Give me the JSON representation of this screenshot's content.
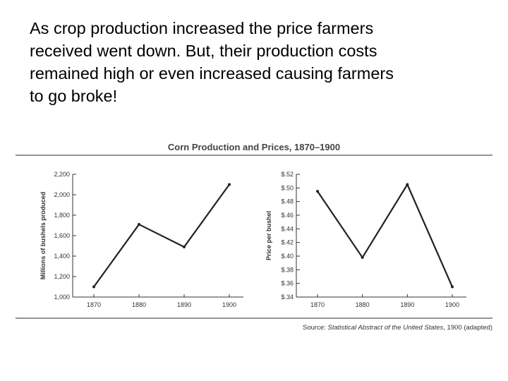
{
  "caption": {
    "lines": [
      "As crop production increased the price farmers",
      "received went down.  But, their production costs",
      "remained high or even increased causing farmers",
      "to go broke!"
    ]
  },
  "figure": {
    "title": "Corn Production and Prices, 1870–1900",
    "source_prefix": "Source: ",
    "source_italic": "Statistical Abstract of the United States",
    "source_suffix": ", 1900 (adapted)"
  },
  "chart_data": [
    {
      "type": "line",
      "title": "",
      "xlabel": "",
      "ylabel": "Millions of bushels produced",
      "x": [
        "1870",
        "1880",
        "1890",
        "1900"
      ],
      "series": [
        {
          "values": [
            1100,
            1710,
            1490,
            2100
          ]
        }
      ],
      "ylim": [
        1000,
        2200
      ],
      "yticks": [
        1000,
        1200,
        1400,
        1600,
        1800,
        2000,
        2200
      ],
      "ytick_labels": [
        "1,000",
        "1,200",
        "1,400",
        "1,600",
        "1,800",
        "2,000",
        "2,200"
      ],
      "grid": false,
      "line_color": "#222222"
    },
    {
      "type": "line",
      "title": "",
      "xlabel": "",
      "ylabel": "Price per bushel",
      "x": [
        "1870",
        "1880",
        "1890",
        "1900"
      ],
      "series": [
        {
          "values": [
            0.495,
            0.398,
            0.505,
            0.355
          ]
        }
      ],
      "ylim": [
        0.34,
        0.52
      ],
      "yticks": [
        0.34,
        0.36,
        0.38,
        0.4,
        0.42,
        0.44,
        0.46,
        0.48,
        0.5,
        0.52
      ],
      "ytick_labels": [
        "$.34",
        "$.36",
        "$.38",
        "$.40",
        "$.42",
        "$.44",
        "$.46",
        "$.48",
        "$.50",
        "$.52"
      ],
      "grid": false,
      "line_color": "#222222"
    }
  ]
}
